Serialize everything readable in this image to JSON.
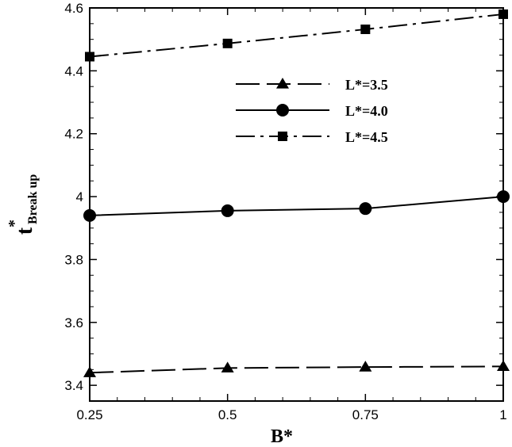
{
  "chart_data": {
    "type": "line",
    "xlabel": "B*",
    "ylabel": {
      "base": "t",
      "superscript": "*",
      "subscript": "Break up"
    },
    "xlim": [
      0.25,
      1
    ],
    "ylim": [
      3.35,
      4.6
    ],
    "x_ticks": [
      0.25,
      0.5,
      0.75,
      1
    ],
    "x_tick_labels": [
      "0.25",
      "0.5",
      "0.75",
      "1"
    ],
    "y_ticks": [
      3.4,
      3.6,
      3.8,
      4,
      4.2,
      4.4,
      4.6
    ],
    "y_tick_labels": [
      "3.4",
      "3.6",
      "3.8",
      "4",
      "4.2",
      "4.4",
      "4.6"
    ],
    "grid": false,
    "legend_position": "upper-right",
    "series": [
      {
        "name": "L*=3.5",
        "x": [
          0.25,
          0.5,
          0.75,
          1
        ],
        "values": [
          3.44,
          3.455,
          3.458,
          3.46
        ],
        "line_style": "long-dash",
        "marker": "triangle",
        "color": "#000000"
      },
      {
        "name": "L*=4.0",
        "x": [
          0.25,
          0.5,
          0.75,
          1
        ],
        "values": [
          3.94,
          3.955,
          3.962,
          4.0
        ],
        "line_style": "solid",
        "marker": "circle",
        "color": "#000000"
      },
      {
        "name": "L*=4.5",
        "x": [
          0.25,
          0.5,
          0.75,
          1
        ],
        "values": [
          4.445,
          4.487,
          4.532,
          4.58
        ],
        "line_style": "dash-dot",
        "marker": "square",
        "color": "#000000"
      }
    ]
  }
}
